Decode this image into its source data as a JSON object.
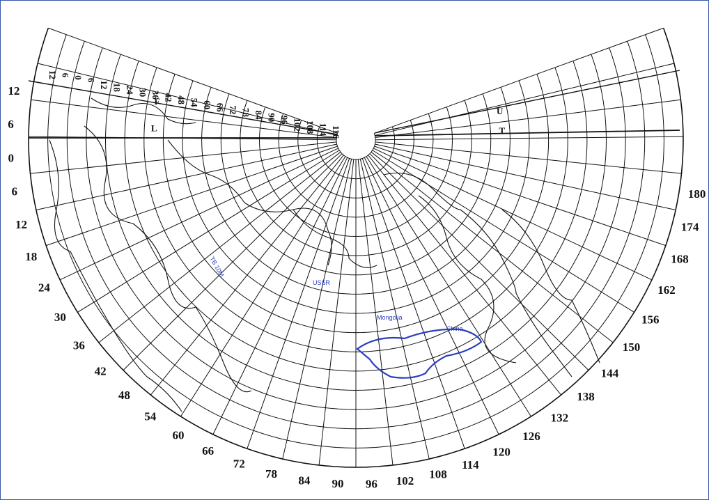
{
  "map": {
    "left_arc_labels": [
      "12",
      "6",
      "0",
      "6",
      "12",
      "18",
      "24",
      "30",
      "36",
      "42",
      "48",
      "54",
      "60",
      "66",
      "72",
      "78",
      "84",
      "90",
      "96",
      "102",
      "108",
      "114",
      "120",
      "126",
      "132",
      "138",
      "144",
      "150",
      "156",
      "162",
      "168",
      "174",
      "180",
      "174",
      "168"
    ],
    "top_left_labels": [
      "12",
      "6",
      "0",
      "6",
      "12",
      "18",
      "24",
      "30",
      "36",
      "42",
      "48",
      "54",
      "60",
      "66",
      "72",
      "78",
      "84",
      "90",
      "96",
      "102",
      "108",
      "114",
      "116"
    ],
    "right_labels": [
      "168",
      "174",
      "180",
      "174",
      "168",
      "162",
      "156",
      "150",
      "144",
      "138",
      "132",
      "126",
      "120",
      "114",
      "108",
      "102"
    ],
    "bottom_labels": [
      "84",
      "90",
      "96",
      "102",
      "108",
      "114",
      "120",
      "126",
      "132",
      "138",
      "144",
      "150",
      "156",
      "162"
    ],
    "left_labels": [
      "12",
      "6",
      "0",
      "6",
      "12",
      "18",
      "24",
      "30",
      "36",
      "42",
      "48",
      "54",
      "60",
      "66",
      "72",
      "78"
    ],
    "blue_labels": [
      "TB 10M",
      "USSR",
      "Mongolia",
      "China"
    ],
    "colors": {
      "grid": "#111111",
      "boundary": "#2a3fc0",
      "frame": "#3a55a8"
    }
  }
}
